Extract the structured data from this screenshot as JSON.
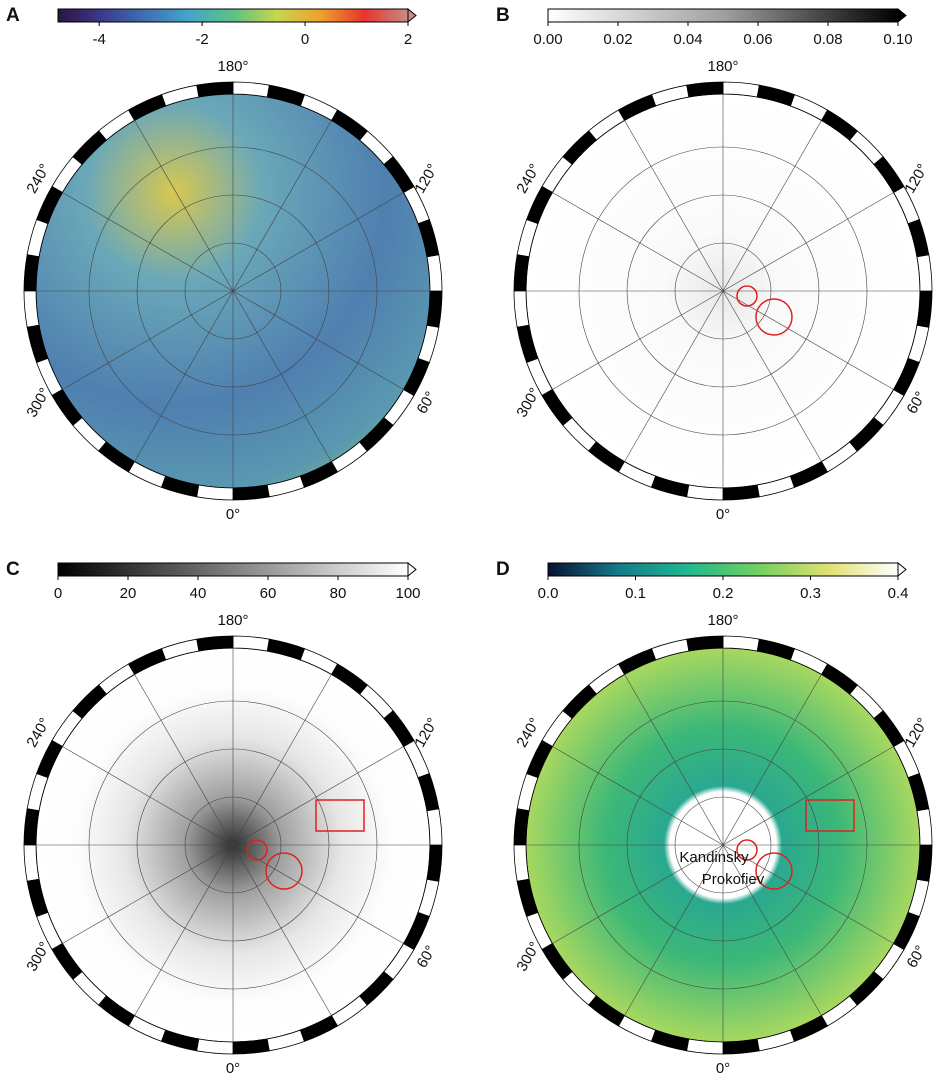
{
  "panels": [
    {
      "label": "A",
      "colorbar": {
        "lim": [
          -4.8,
          2
        ],
        "ticks": [
          -4,
          -2,
          0,
          2
        ],
        "colormap": [
          "#2a1540",
          "#3b3a8c",
          "#3f6fb5",
          "#43a6c8",
          "#5cc08a",
          "#c8d64a",
          "#f0a030",
          "#e8342a",
          "#c88a8a"
        ]
      },
      "longitudes": [
        {
          "value": 180,
          "label": "180°"
        },
        {
          "value": 120,
          "label": "120°"
        },
        {
          "value": 60,
          "label": "60°"
        },
        {
          "value": 0,
          "label": "0°"
        },
        {
          "value": 300,
          "label": "300°"
        },
        {
          "value": 240,
          "label": "240°"
        }
      ]
    },
    {
      "label": "B",
      "colorbar": {
        "lim": [
          0,
          0.1
        ],
        "ticks": [
          {
            "value": 0,
            "label": "0.00"
          },
          {
            "value": 0.02,
            "label": "0.02"
          },
          {
            "value": 0.04,
            "label": "0.04"
          },
          {
            "value": 0.06,
            "label": "0.06"
          },
          {
            "value": 0.08,
            "label": "0.08"
          },
          {
            "value": 0.1,
            "label": "0.10"
          }
        ],
        "colormap": [
          "#ffffff",
          "#a0a0a0",
          "#000000"
        ]
      },
      "longitudes": [
        {
          "value": 180,
          "label": "180°"
        },
        {
          "value": 120,
          "label": "120°"
        },
        {
          "value": 60,
          "label": "60°"
        },
        {
          "value": 0,
          "label": "0°"
        },
        {
          "value": 300,
          "label": "300°"
        },
        {
          "value": 240,
          "label": "240°"
        }
      ]
    },
    {
      "label": "C",
      "colorbar": {
        "lim": [
          0,
          100
        ],
        "ticks": [
          0,
          20,
          40,
          60,
          80,
          100
        ],
        "colormap": [
          "#000000",
          "#808080",
          "#ffffff"
        ]
      },
      "longitudes": [
        {
          "value": 180,
          "label": "180°"
        },
        {
          "value": 120,
          "label": "120°"
        },
        {
          "value": 60,
          "label": "60°"
        },
        {
          "value": 0,
          "label": "0°"
        },
        {
          "value": 300,
          "label": "300°"
        },
        {
          "value": 240,
          "label": "240°"
        }
      ]
    },
    {
      "label": "D",
      "colorbar": {
        "lim": [
          0,
          0.4
        ],
        "ticks": [
          {
            "value": 0,
            "label": "0.0"
          },
          {
            "value": 0.1,
            "label": "0.1"
          },
          {
            "value": 0.2,
            "label": "0.2"
          },
          {
            "value": 0.3,
            "label": "0.3"
          },
          {
            "value": 0.4,
            "label": "0.4"
          }
        ],
        "colormap": [
          "#0a1030",
          "#147a8a",
          "#20b890",
          "#70d060",
          "#e0e070",
          "#ffffff"
        ]
      },
      "longitudes": [
        {
          "value": 180,
          "label": "180°"
        },
        {
          "value": 120,
          "label": "120°"
        },
        {
          "value": 60,
          "label": "60°"
        },
        {
          "value": 0,
          "label": "0°"
        },
        {
          "value": 300,
          "label": "300°"
        },
        {
          "value": 240,
          "label": "240°"
        }
      ],
      "annotations": [
        "Kandinsky",
        "Prokofiev"
      ]
    }
  ]
}
